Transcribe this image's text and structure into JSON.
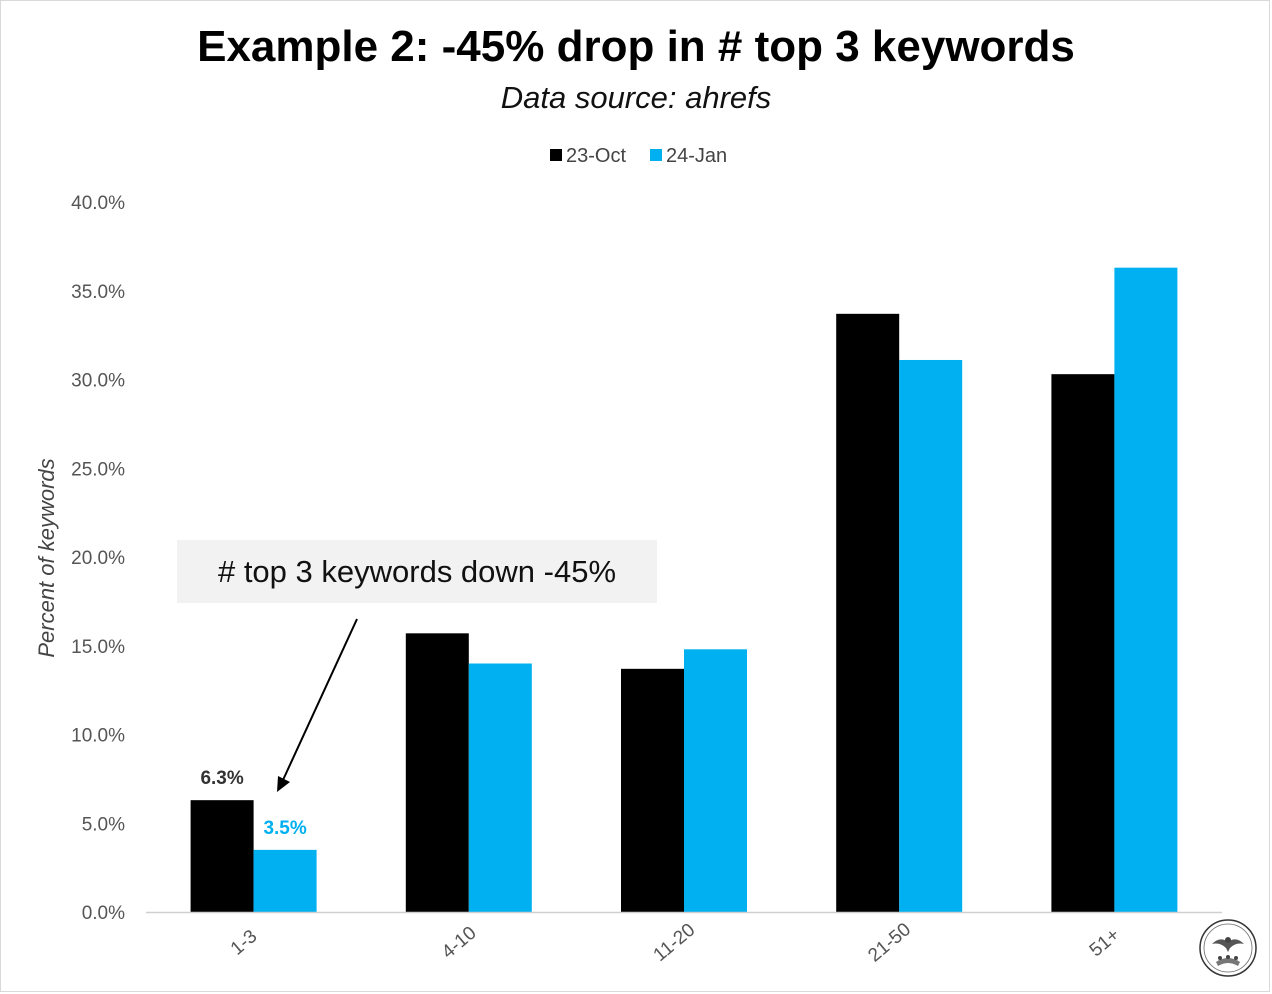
{
  "chart_data": {
    "type": "bar",
    "title": "Example 2: -45% drop in # top 3 keywords",
    "subtitle": "Data source: ahrefs",
    "ylabel": "Percent of keywords",
    "xlabel": "",
    "categories": [
      "1-3",
      "4-10",
      "11-20",
      "21-50",
      "51+"
    ],
    "series": [
      {
        "name": "23-Oct",
        "color": "#000000",
        "values": [
          6.3,
          15.7,
          13.7,
          33.7,
          30.3
        ]
      },
      {
        "name": "24-Jan",
        "color": "#00b0f0",
        "values": [
          3.5,
          14.0,
          14.8,
          31.1,
          36.3
        ]
      }
    ],
    "data_labels": [
      {
        "series": 0,
        "category": 0,
        "text": "6.3%"
      },
      {
        "series": 1,
        "category": 0,
        "text": "3.5%"
      }
    ],
    "ylim": [
      0,
      40
    ],
    "yticks": [
      "0.0%",
      "5.0%",
      "10.0%",
      "15.0%",
      "20.0%",
      "25.0%",
      "30.0%",
      "35.0%",
      "40.0%"
    ],
    "grid": false,
    "legend_position": "top-center",
    "annotation": "# top 3 keywords down -45%"
  },
  "seal_icon": "eagle-seal-icon"
}
